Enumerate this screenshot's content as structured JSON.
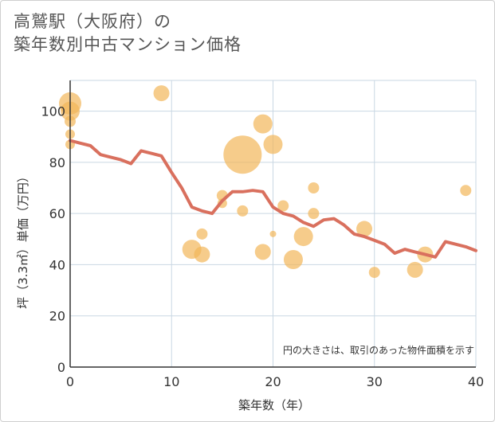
{
  "title": {
    "line1": "高鷲駅（大阪府）の",
    "line2": "築年数別中古マンション価格"
  },
  "note": "円の大きさは、取引のあった物件面積を示す",
  "colors": {
    "line": "#d9705e",
    "bubble": "#f2b65a",
    "grid": "#c9d7e3",
    "axis": "#333333"
  },
  "chart_data": {
    "type": "scatter",
    "xlabel": "築年数（年）",
    "ylabel": "坪（3.3㎡）単価（万円）",
    "xlim": [
      0,
      40
    ],
    "ylim": [
      0,
      112
    ],
    "x_ticks": [
      0,
      10,
      20,
      30,
      40
    ],
    "y_ticks": [
      0,
      20,
      40,
      60,
      80,
      100
    ],
    "grid": true,
    "series": [
      {
        "type": "bubble",
        "points": [
          {
            "x": 0,
            "y": 103,
            "size": 14
          },
          {
            "x": 0,
            "y": 100,
            "size": 12
          },
          {
            "x": 0,
            "y": 96,
            "size": 7
          },
          {
            "x": 0,
            "y": 91,
            "size": 6
          },
          {
            "x": 0,
            "y": 87,
            "size": 6
          },
          {
            "x": 9,
            "y": 107,
            "size": 10
          },
          {
            "x": 12,
            "y": 46,
            "size": 12
          },
          {
            "x": 13,
            "y": 52,
            "size": 7
          },
          {
            "x": 13,
            "y": 44,
            "size": 10
          },
          {
            "x": 15,
            "y": 67,
            "size": 7
          },
          {
            "x": 15,
            "y": 64,
            "size": 6
          },
          {
            "x": 17,
            "y": 83,
            "size": 24
          },
          {
            "x": 17,
            "y": 61,
            "size": 7
          },
          {
            "x": 19,
            "y": 95,
            "size": 12
          },
          {
            "x": 19,
            "y": 45,
            "size": 10
          },
          {
            "x": 20,
            "y": 87,
            "size": 12
          },
          {
            "x": 20,
            "y": 52,
            "size": 4
          },
          {
            "x": 21,
            "y": 63,
            "size": 7
          },
          {
            "x": 22,
            "y": 42,
            "size": 12
          },
          {
            "x": 23,
            "y": 51,
            "size": 12
          },
          {
            "x": 24,
            "y": 70,
            "size": 7
          },
          {
            "x": 24,
            "y": 60,
            "size": 7
          },
          {
            "x": 29,
            "y": 54,
            "size": 10
          },
          {
            "x": 30,
            "y": 37,
            "size": 7
          },
          {
            "x": 34,
            "y": 38,
            "size": 10
          },
          {
            "x": 35,
            "y": 44,
            "size": 10
          },
          {
            "x": 39,
            "y": 69,
            "size": 7
          }
        ]
      },
      {
        "type": "line",
        "x": [
          0,
          1,
          2,
          3,
          4,
          5,
          6,
          7,
          8,
          9,
          10,
          11,
          12,
          13,
          14,
          15,
          16,
          17,
          18,
          19,
          20,
          21,
          22,
          23,
          24,
          25,
          26,
          27,
          28,
          29,
          30,
          31,
          32,
          33,
          34,
          35,
          36,
          37,
          38,
          39,
          40
        ],
        "y": [
          88.5,
          87.5,
          86.5,
          83,
          82,
          81,
          79.5,
          84.5,
          83.5,
          82.5,
          76,
          70,
          62.5,
          61,
          60,
          65,
          68.5,
          68.5,
          69,
          68.5,
          62.5,
          60,
          59,
          56.5,
          55,
          57.5,
          58,
          55.5,
          52,
          51,
          49.5,
          48,
          44.5,
          46,
          45,
          44,
          43,
          49,
          48,
          47,
          45.5
        ]
      }
    ]
  }
}
